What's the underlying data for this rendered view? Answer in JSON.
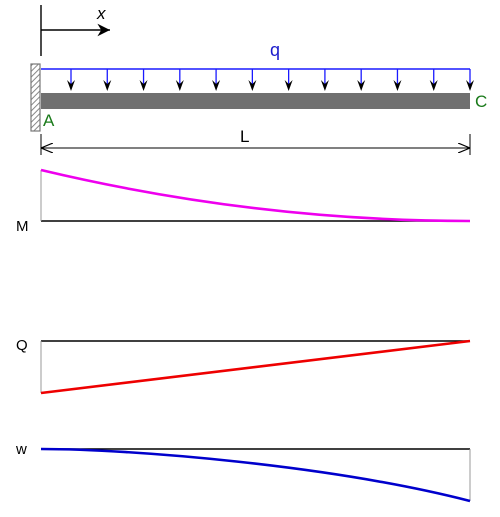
{
  "labels": {
    "axis_x": "x",
    "load": "q",
    "support": "A",
    "free_end": "C",
    "length": "L",
    "moment": "M",
    "shear": "Q",
    "deflection": "w"
  },
  "load_arrow_count": 12,
  "colors": {
    "load": "#1a1aff",
    "label_load": "#1a1acc",
    "beam": "#707070",
    "wall": "#8a8a8a",
    "point_label": "#1a7a1a",
    "moment_curve": "#ee00ee",
    "shear_line": "#ee0000",
    "deflection_curve": "#0000cc",
    "baseline": "#000000"
  }
}
